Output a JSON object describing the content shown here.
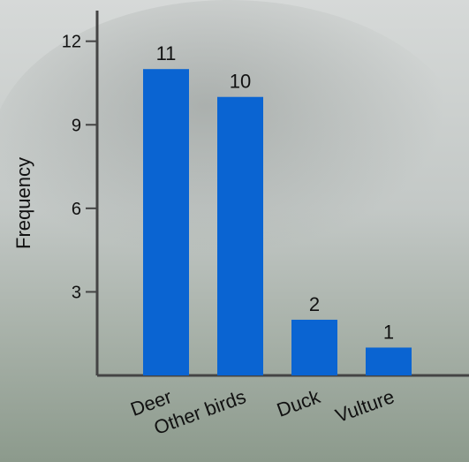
{
  "chart_data": {
    "type": "bar",
    "y_label": "Frequency",
    "categories": [
      "Deer",
      "Other birds",
      "Duck",
      "Vulture"
    ],
    "values": [
      11,
      10,
      2,
      1
    ],
    "color": "#0a64d2",
    "ylim": [
      0,
      13.1
    ],
    "yticks": [
      3,
      6,
      9,
      12
    ]
  }
}
